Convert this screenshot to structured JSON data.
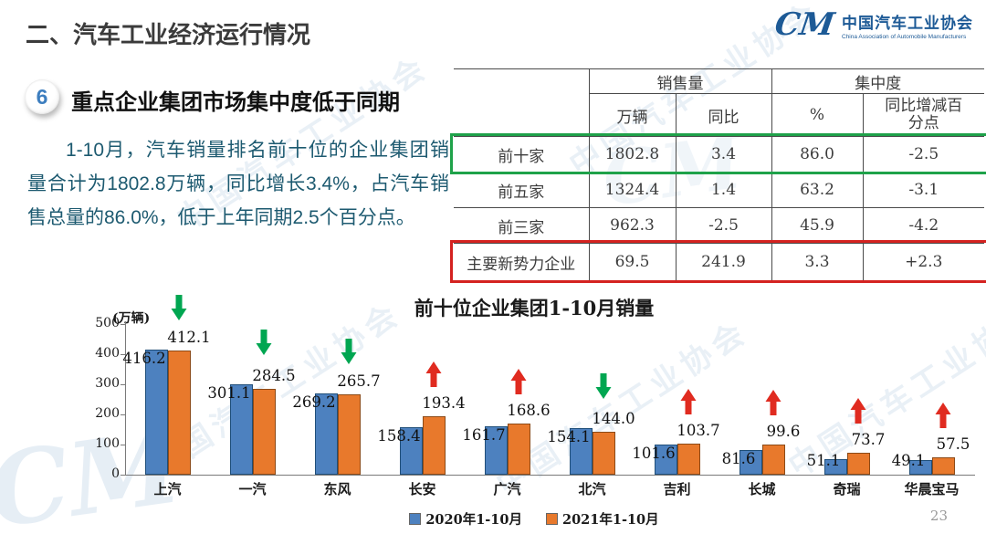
{
  "header": {
    "title": "二、汽车工业经济运行情况"
  },
  "logo": {
    "mark": "CM",
    "name_cn": "中国汽车工业协会",
    "name_en": "China Association of Automobile Manufacturers"
  },
  "section": {
    "number": "6",
    "title": "重点企业集团市场集中度低于同期"
  },
  "paragraph": {
    "text": "1-10月，汽车销量排名前十位的企业集团销量合计为1802.8万辆，同比增长3.4%，占汽车销售总量的86.0%，低于上年同期2.5个百分点。"
  },
  "table": {
    "col_groups": [
      {
        "label": "销售量",
        "span": 2
      },
      {
        "label": "集中度",
        "span": 2
      }
    ],
    "sub_headers": [
      "万辆",
      "同比",
      "%",
      "同比增减百分点"
    ],
    "rows": [
      {
        "label": "前十家",
        "values": [
          "1802.8",
          "3.4",
          "86.0",
          "-2.5"
        ],
        "highlight": "green"
      },
      {
        "label": "前五家",
        "values": [
          "1324.4",
          "1.4",
          "63.2",
          "-3.1"
        ],
        "highlight": null
      },
      {
        "label": "前三家",
        "values": [
          "962.3",
          "-2.5",
          "45.9",
          "-4.2"
        ],
        "highlight": null
      },
      {
        "label": "主要新势力企业",
        "values": [
          "69.5",
          "241.9",
          "3.3",
          "+2.3"
        ],
        "highlight": "red"
      }
    ]
  },
  "chart_data": {
    "type": "bar",
    "title": "前十位企业集团1-10月销量",
    "unit_label": "(万辆)",
    "categories": [
      "上汽",
      "一汽",
      "东风",
      "长安",
      "广汽",
      "北汽",
      "吉利",
      "长城",
      "奇瑞",
      "华晨宝马"
    ],
    "series": [
      {
        "name": "2020年1-10月",
        "color": "#4d81bf",
        "values": [
          416.2,
          301.1,
          269.2,
          158.4,
          161.7,
          154.1,
          101.6,
          81.6,
          51.1,
          49.1
        ]
      },
      {
        "name": "2021年1-10月",
        "color": "#e8792c",
        "values": [
          412.1,
          284.5,
          265.7,
          193.4,
          168.6,
          144.0,
          103.7,
          99.6,
          73.7,
          57.5
        ]
      }
    ],
    "trend": [
      "down",
      "down",
      "down",
      "up",
      "up",
      "down",
      "up",
      "up",
      "up",
      "up"
    ],
    "ylim": [
      0,
      500
    ],
    "yticks": [
      0,
      100,
      200,
      300,
      400,
      500
    ],
    "xlabel": "",
    "ylabel": "万辆",
    "legend_position": "bottom",
    "grid": false
  },
  "footer": {
    "page_number": "23"
  },
  "watermark": {
    "text": "中国汽车工业协会",
    "mark": "CM"
  },
  "colors": {
    "bar_blue": "#4d81bf",
    "bar_blue_border": "#1f4e79",
    "bar_orange": "#e8792c",
    "bar_orange_border": "#8c4a17",
    "arrow_up_red": "#e02b20",
    "arrow_down_green": "#00a651",
    "highlight_green": "#1fa24a",
    "highlight_red": "#d42220",
    "body_text": "#1d5a70",
    "logo_blue": "#1d5a96"
  }
}
